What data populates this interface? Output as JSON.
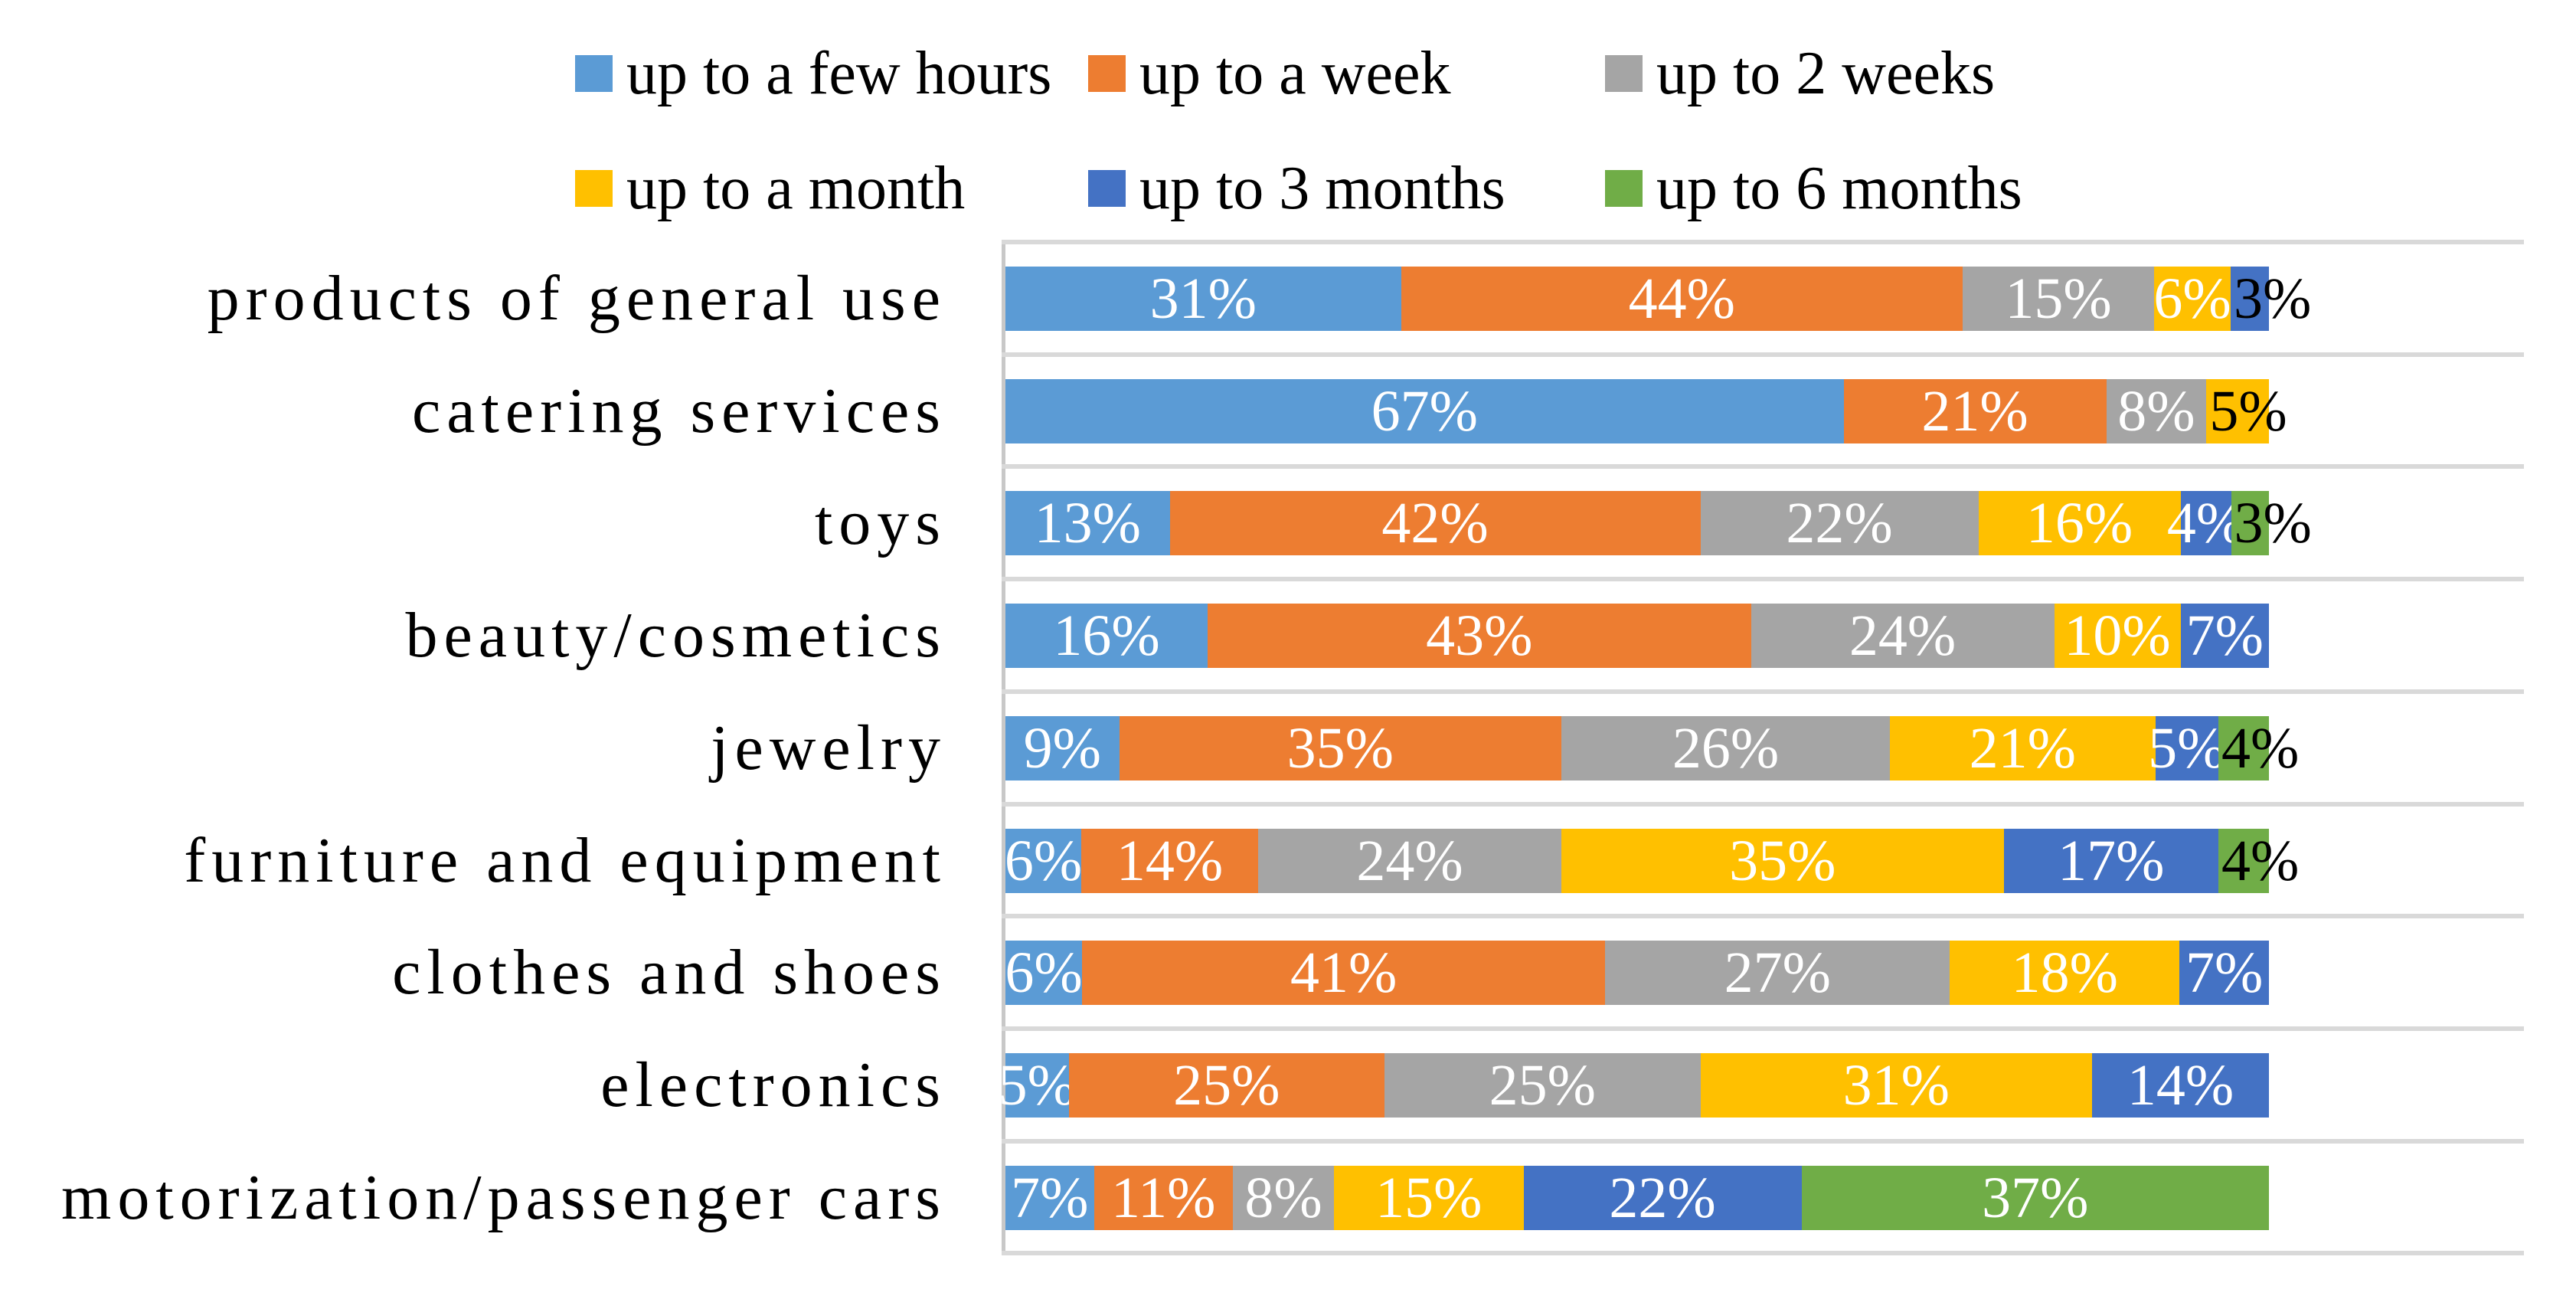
{
  "chart_data": {
    "type": "bar",
    "orientation": "horizontal",
    "stacked": true,
    "values_unit": "percent",
    "title": "",
    "xlabel": "",
    "ylabel": "",
    "legend_position": "top",
    "grid": "horizontal category separator lines",
    "gridline_color": "#D9D9D9",
    "axis_line_color": "#C8C8C8",
    "background": "#FFFFFF",
    "categories": [
      "products of general use",
      "catering services",
      "toys",
      "beauty/cosmetics",
      "jewelry",
      "furniture and equipment",
      "clothes and shoes",
      "electronics",
      "motorization/passenger cars"
    ],
    "series": [
      {
        "name": "up to a few hours",
        "color": "#5B9BD5",
        "values": [
          31,
          67,
          13,
          16,
          9,
          6,
          6,
          5,
          7
        ]
      },
      {
        "name": "up to a week",
        "color": "#ED7D31",
        "values": [
          44,
          21,
          42,
          43,
          35,
          14,
          41,
          25,
          11
        ]
      },
      {
        "name": "up to 2 weeks",
        "color": "#A5A5A5",
        "values": [
          15,
          8,
          22,
          24,
          26,
          24,
          27,
          25,
          8
        ]
      },
      {
        "name": "up to a month",
        "color": "#FFC000",
        "values": [
          6,
          5,
          16,
          10,
          21,
          35,
          18,
          31,
          15
        ]
      },
      {
        "name": "up to 3 months",
        "color": "#4472C4",
        "values": [
          3,
          0,
          4,
          7,
          5,
          17,
          7,
          14,
          22
        ]
      },
      {
        "name": "up to 6 months",
        "color": "#70AD47",
        "values": [
          0,
          0,
          3,
          0,
          4,
          4,
          0,
          0,
          37
        ]
      }
    ],
    "data_labels": {
      "format": "{value}%",
      "color_inside": "#FFFFFF",
      "color_outside_end": "#000000",
      "outside_end_max_percent": 5
    }
  }
}
